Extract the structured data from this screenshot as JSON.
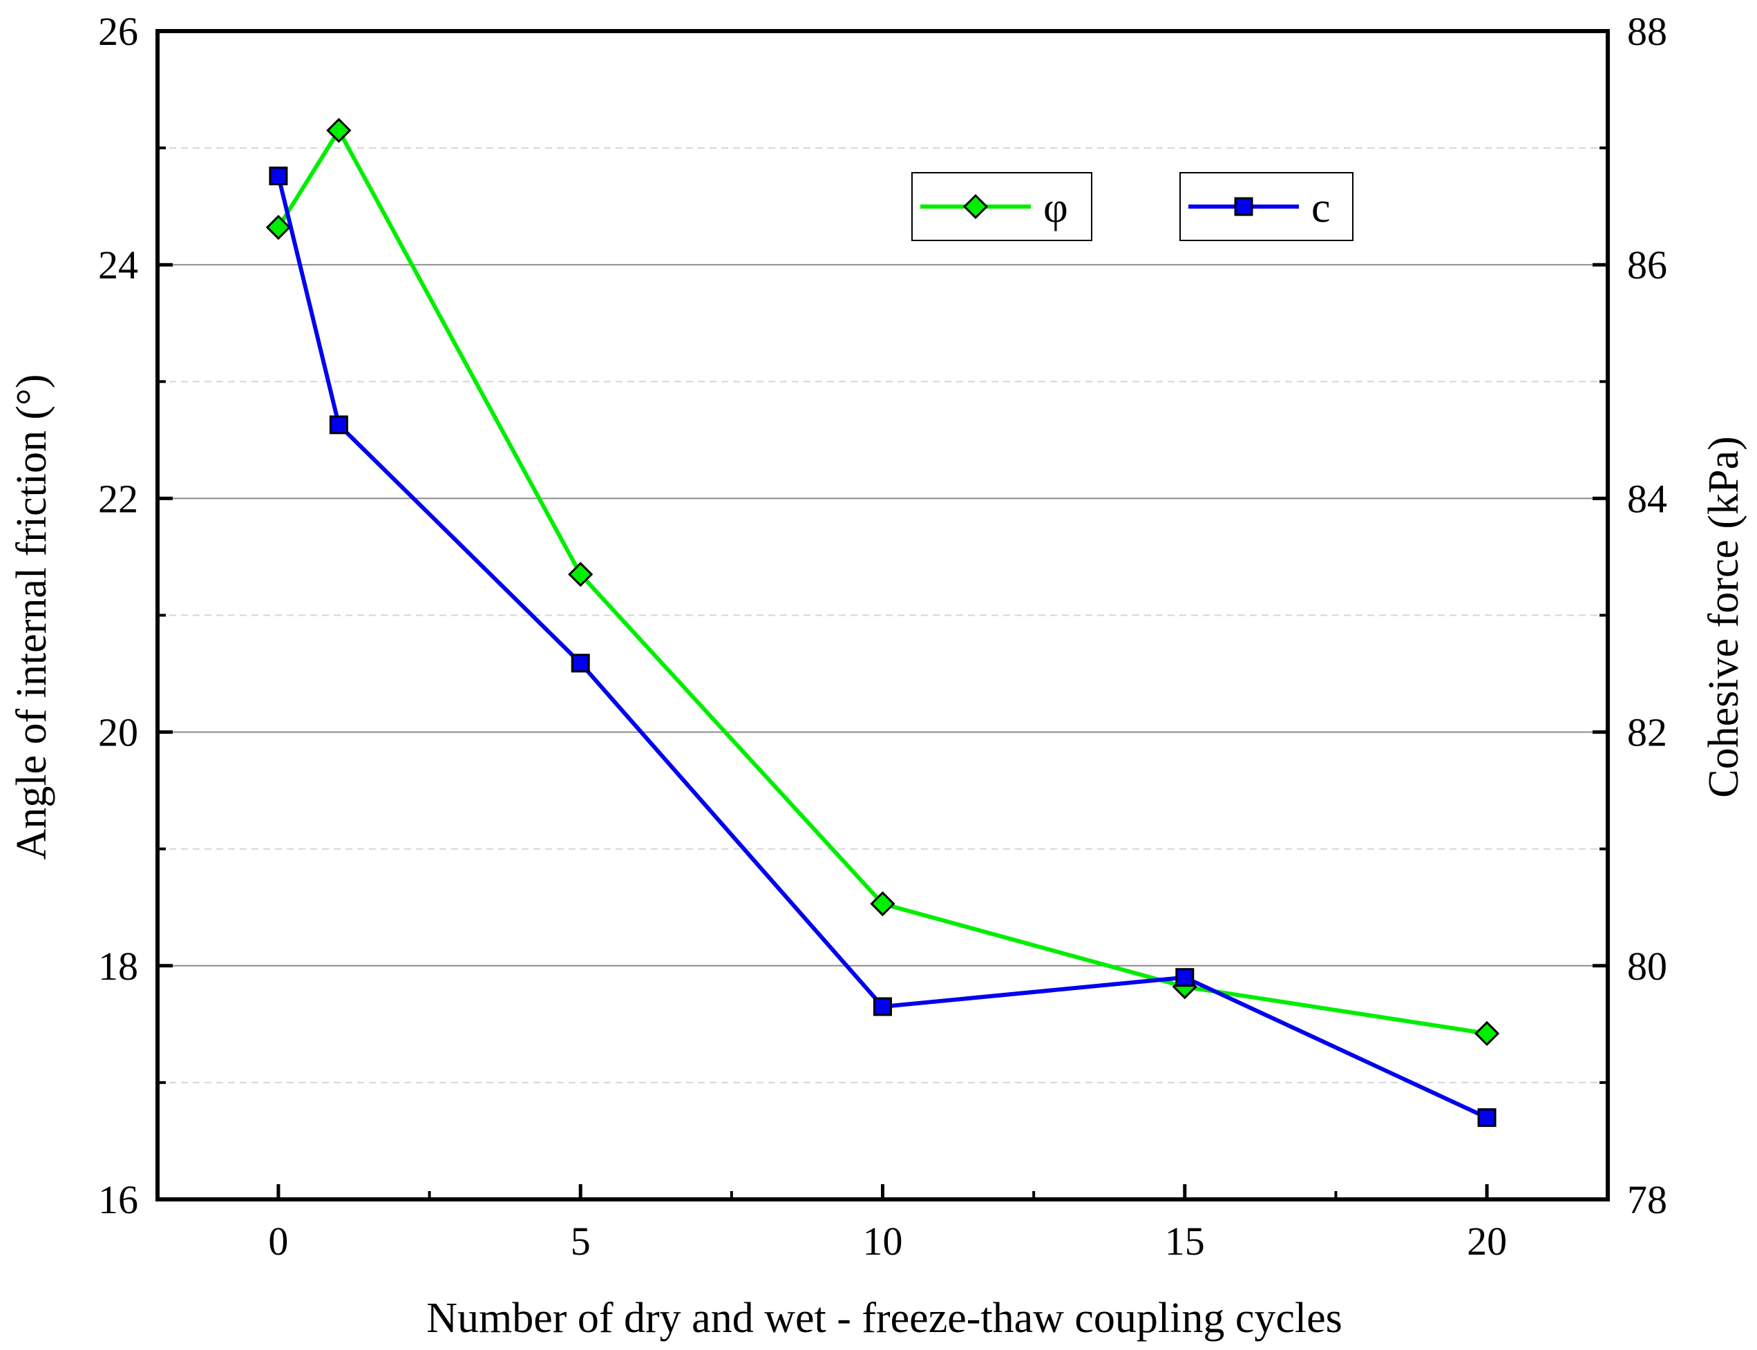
{
  "chart_data": {
    "type": "line",
    "xlabel": "Number of dry and wet - freeze-thaw coupling cycles",
    "ylabel": "Angle of internal friction (°)",
    "y2label": "Cohesive force (kPa)",
    "xlim": [
      -2,
      22
    ],
    "ylim": [
      16,
      26
    ],
    "y2lim": [
      78,
      88
    ],
    "xticks": [
      "0",
      "5",
      "10",
      "15",
      "20"
    ],
    "yticks": [
      "16",
      "18",
      "20",
      "22",
      "24",
      "26"
    ],
    "y2ticks": [
      "78",
      "80",
      "82",
      "84",
      "86",
      "88"
    ],
    "grid": true,
    "legend": "top-right",
    "series": [
      {
        "name": "φ",
        "axis": "left",
        "color": "#00ee00",
        "marker": "diamond",
        "x": [
          0,
          1,
          5,
          10,
          15,
          20
        ],
        "values": [
          24.32,
          25.15,
          21.35,
          18.53,
          17.82,
          17.42
        ]
      },
      {
        "name": "c",
        "axis": "right",
        "color": "#0000ee",
        "marker": "square",
        "x": [
          0,
          1,
          5,
          10,
          15,
          20
        ],
        "values": [
          86.76,
          84.63,
          82.59,
          79.65,
          79.9,
          78.7
        ]
      }
    ]
  }
}
